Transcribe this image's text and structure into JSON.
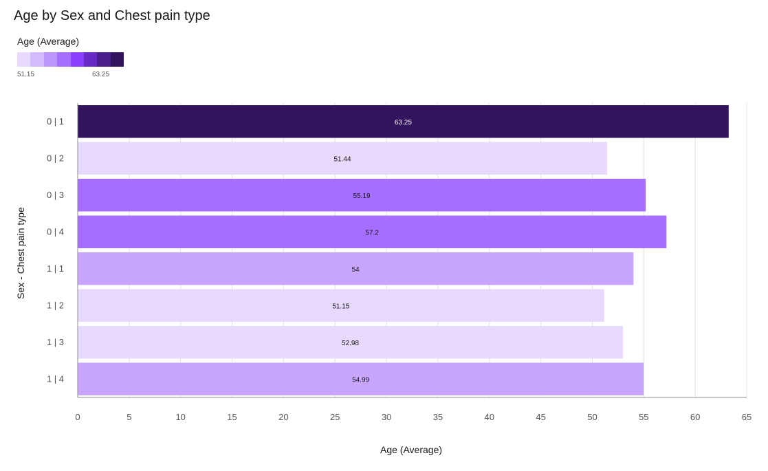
{
  "title": "Age by Sex and Chest pain type",
  "legend": {
    "title": "Age (Average)",
    "min_label": "51.15",
    "max_label": "63.25",
    "colors": [
      "#e8daff",
      "#d4bbff",
      "#be95ff",
      "#a56eff",
      "#8a3ffc",
      "#6929c4",
      "#491d8b",
      "#31135e"
    ]
  },
  "chart_data": {
    "type": "bar",
    "orientation": "horizontal",
    "title": "Age by Sex and Chest pain type",
    "xlabel": "Age (Average)",
    "ylabel": "Sex - Chest pain type",
    "categories": [
      "0 | 1",
      "0 | 2",
      "0 | 3",
      "0 | 4",
      "1 | 1",
      "1 | 2",
      "1 | 3",
      "1 | 4"
    ],
    "values": [
      63.25,
      51.44,
      55.19,
      57.2,
      54,
      51.15,
      52.98,
      54.99
    ],
    "data_labels": [
      "63.25",
      "51.44",
      "55.19",
      "57.2",
      "54",
      "51.15",
      "52.98",
      "54.99"
    ],
    "bar_colors": [
      "#31135e",
      "#e8daff",
      "#a56eff",
      "#a56eff",
      "#c8a6ff",
      "#e8daff",
      "#e8daff",
      "#c8a6ff"
    ],
    "label_colors": [
      "#ffffff",
      "#161616",
      "#161616",
      "#161616",
      "#161616",
      "#161616",
      "#161616",
      "#161616"
    ],
    "xlim": [
      0,
      65
    ],
    "xticks": [
      0,
      5,
      10,
      15,
      20,
      25,
      30,
      35,
      40,
      45,
      50,
      55,
      60,
      65
    ],
    "grid": true
  }
}
